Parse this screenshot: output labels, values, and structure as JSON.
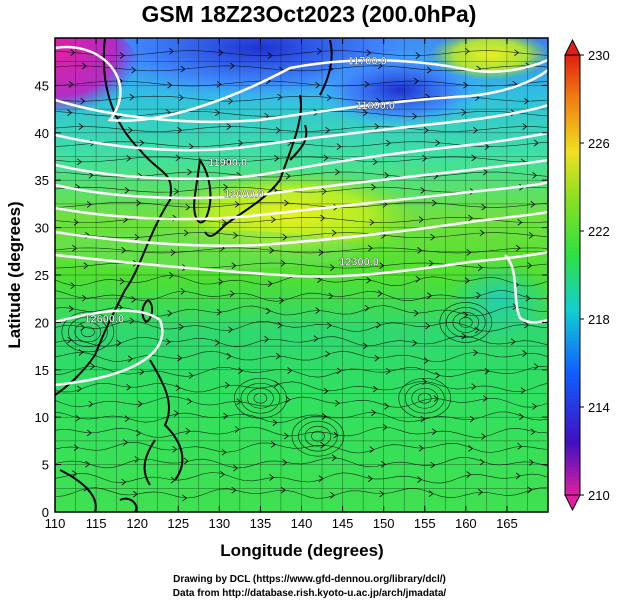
{
  "title": "GSM 18Z23Oct2023 (200.0hPa)",
  "x_axis": {
    "label": "Longitude (degrees)",
    "ticks": [
      "110",
      "115",
      "120",
      "125",
      "130",
      "135",
      "140",
      "145",
      "150",
      "155",
      "160",
      "165"
    ],
    "tick_values": [
      110,
      115,
      120,
      125,
      130,
      135,
      140,
      145,
      150,
      155,
      160,
      165
    ],
    "range": [
      110,
      170
    ]
  },
  "y_axis": {
    "label": "Latitude  (degrees)",
    "ticks": [
      "0",
      "5",
      "10",
      "15",
      "20",
      "25",
      "30",
      "35",
      "40",
      "45"
    ],
    "tick_values": [
      0,
      5,
      10,
      15,
      20,
      25,
      30,
      35,
      40,
      45
    ],
    "range": [
      0,
      50
    ]
  },
  "colorbar": {
    "ticks": [
      "210",
      "214",
      "218",
      "222",
      "226",
      "230"
    ],
    "tick_values": [
      210,
      214,
      218,
      222,
      226,
      230
    ],
    "range": [
      210,
      230
    ],
    "stops": [
      "#e020a0",
      "#4010c0",
      "#1060ff",
      "#10d0d0",
      "#30e040",
      "#90e020",
      "#f0e020",
      "#f08010",
      "#e02010"
    ]
  },
  "contour_labels": [
    {
      "text": "11700.0",
      "lon": 148,
      "lat": 47.2
    },
    {
      "text": "11800.0",
      "lon": 149,
      "lat": 42.5
    },
    {
      "text": "11900.0",
      "lon": 131,
      "lat": 36.5
    },
    {
      "text": "12000.0",
      "lon": 133,
      "lat": 33.2
    },
    {
      "text": "12300.0",
      "lon": 147,
      "lat": 26.0
    },
    {
      "text": "12600.0",
      "lon": 116,
      "lat": 20.0
    }
  ],
  "credits": {
    "line1": "Drawing by DCL (https://www.gfd-dennou.org/library/dcl/)",
    "line2": "Data from http://database.rish.kyoto-u.ac.jp/arch/jmadata/"
  },
  "chart_data": {
    "type": "heatmap",
    "title": "GSM 18Z23Oct2023 (200.0hPa)",
    "xlabel": "Longitude (degrees)",
    "ylabel": "Latitude  (degrees)",
    "xlim": [
      110,
      170
    ],
    "ylim": [
      0,
      50
    ],
    "color_scale": {
      "min": 210,
      "max": 230
    },
    "overlays": [
      "streamlines",
      "geopotential height contours",
      "coastlines",
      "grid"
    ]
  }
}
